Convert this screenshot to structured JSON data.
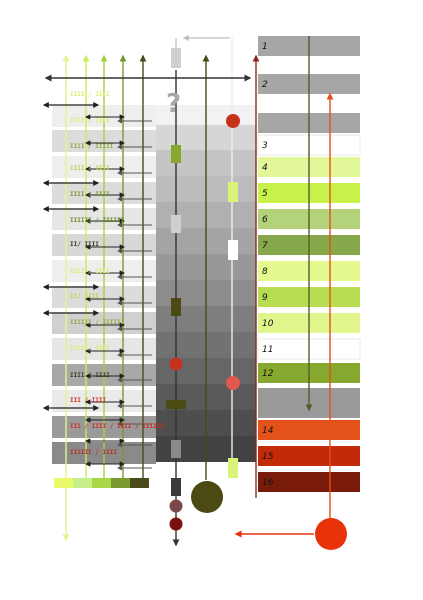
{
  "question_mark": "?",
  "right_rows": [
    {
      "label": "1",
      "fill": "#a6a6a6",
      "divider": true
    },
    {
      "label": "2",
      "fill": "#a6a6a6",
      "divider": true
    },
    {
      "label": "",
      "fill": "#a6a6a6",
      "divider": true
    },
    {
      "label": "3",
      "fill": "#ffffff",
      "divider": false
    },
    {
      "label": "4",
      "fill": "#e1f79a",
      "divider": false
    },
    {
      "label": "5",
      "fill": "#c8f24a",
      "divider": false
    },
    {
      "label": "6",
      "fill": "#b4d27a",
      "divider": false
    },
    {
      "label": "7",
      "fill": "#86a84a",
      "divider": false
    },
    {
      "label": "8",
      "fill": "#e4fa8e",
      "divider": false
    },
    {
      "label": "9",
      "fill": "#b8dc52",
      "divider": false
    },
    {
      "label": "10",
      "fill": "#e0f58c",
      "divider": false
    },
    {
      "label": "11",
      "fill": "#ffffff",
      "divider": false
    },
    {
      "label": "12",
      "fill": "#86a82e",
      "divider": false
    },
    {
      "label": "",
      "fill": "#9a9a9a",
      "divider": false
    },
    {
      "label": "14",
      "fill": "#e2521a",
      "divider": false
    },
    {
      "label": "15",
      "fill": "#c22a0a",
      "divider": false
    },
    {
      "label": "16",
      "fill": "#7a1a0a",
      "divider": false
    }
  ],
  "tally_marks": [
    {
      "text": "IIII / IIII",
      "color": "#d6f06a"
    },
    {
      "text": "IIII / IIII",
      "color": "#d6f06a"
    },
    {
      "text": "IIII / IIIII",
      "color": "#8fa83a"
    },
    {
      "text": "IIII / IIII",
      "color": "#b8d64a"
    },
    {
      "text": "IIII / IIII",
      "color": "#7a9a30"
    },
    {
      "text": "IIIIII / IIIIII",
      "color": "#6a8a20"
    },
    {
      "text": "II/ IIII",
      "color": "#3a3a1a"
    },
    {
      "text": "IIII / IIII",
      "color": "#d6f06a"
    },
    {
      "text": "II/ IIII",
      "color": "#b8d64a"
    },
    {
      "text": "IIIIII / IIIIII",
      "color": "#8fa83a"
    },
    {
      "text": "IIII / IIII",
      "color": "#d6f06a"
    },
    {
      "text": "IIII / IIII",
      "color": "#3a3a1a"
    },
    {
      "text": "III / IIII",
      "color": "#d22a1a"
    },
    {
      "text": "III / IIII / IIII / IIIIII",
      "color": "#d22a1a"
    },
    {
      "text": "IIIIII / IIII",
      "color": "#b4321a"
    }
  ],
  "swatches": [
    "#e8fa6a",
    "#c8f08a",
    "#a8d84a",
    "#7a9a30",
    "#4a4a1a"
  ],
  "colors": {
    "orange_red": "#e8320a",
    "dark_olive": "#4a4a12",
    "crimson": "#c8321a",
    "dark_red": "#7a1010",
    "lime": "#d8f27a"
  }
}
